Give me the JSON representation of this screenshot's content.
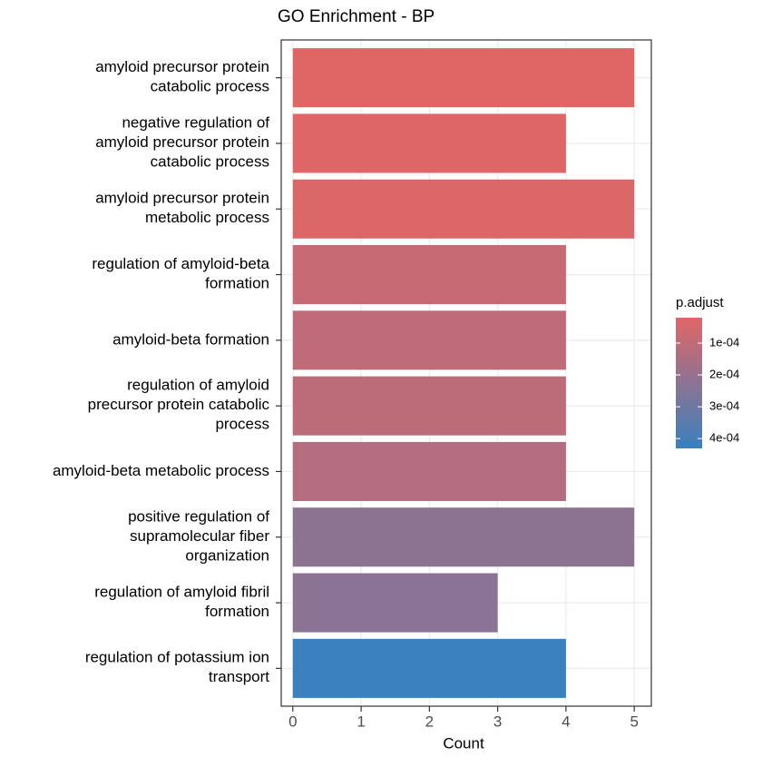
{
  "chart_data": {
    "type": "barh",
    "title": "GO Enrichment - BP",
    "xlabel": "Count",
    "categories": [
      "amyloid precursor protein\ncatabolic process",
      "negative regulation of\namyloid precursor protein\ncatabolic process",
      "amyloid precursor protein\nmetabolic process",
      "regulation of amyloid-beta\nformation",
      "amyloid-beta formation",
      "regulation of amyloid\nprecursor protein catabolic\nprocess",
      "amyloid-beta metabolic process",
      "positive regulation of\nsupramolecular fiber\norganization",
      "regulation of amyloid fibril\nformation",
      "regulation of potassium ion\ntransport"
    ],
    "values": [
      5,
      4,
      5,
      4,
      4,
      4,
      4,
      5,
      3,
      4
    ],
    "color_values": [
      2e-05,
      2.2e-05,
      3e-05,
      8.2e-05,
      0.000102,
      0.00011,
      0.00013,
      0.000225,
      0.00023,
      0.000431
    ],
    "color_title": "p.adjust",
    "color_lim": [
      2e-05,
      0.000431
    ],
    "colors": [
      "#E06666",
      "#3A80BF"
    ],
    "color_ticks": [
      {
        "value": 0.0001,
        "label": "1e-04"
      },
      {
        "value": 0.0002,
        "label": "2e-04"
      },
      {
        "value": 0.0003,
        "label": "3e-04"
      },
      {
        "value": 0.0004,
        "label": "4e-04"
      }
    ],
    "xlim": [
      -0.17,
      5.25
    ],
    "xticks": [
      0,
      1,
      2,
      3,
      4,
      5
    ],
    "grid": true
  }
}
